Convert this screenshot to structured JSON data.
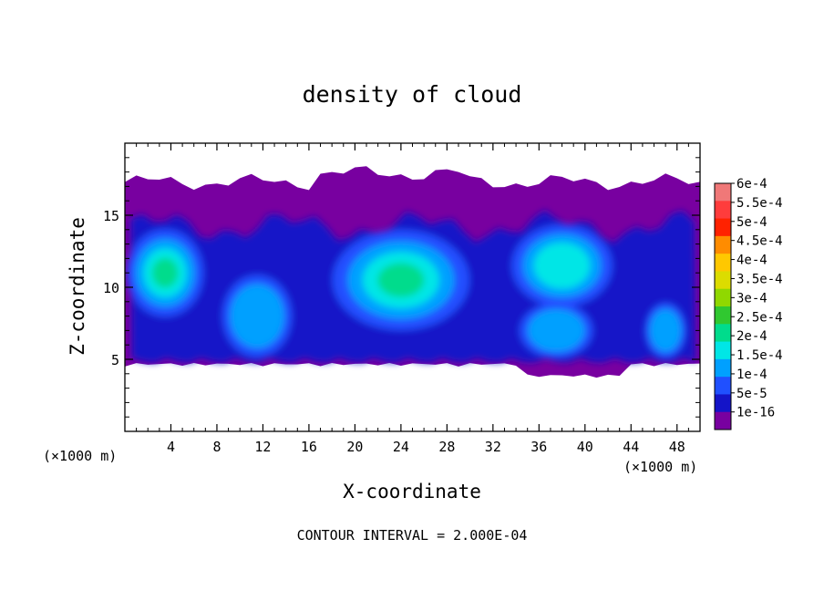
{
  "chart_data": {
    "type": "heatmap",
    "title": "density of cloud",
    "xlabel": "X-coordinate",
    "ylabel": "Z-coordinate",
    "x_unit": "(×1000 m)",
    "y_unit": "(×1000 m)",
    "xlim": [
      0,
      50
    ],
    "ylim": [
      0,
      20
    ],
    "x_ticks": [
      4,
      8,
      12,
      16,
      20,
      24,
      28,
      32,
      36,
      40,
      44,
      48
    ],
    "y_ticks": [
      5,
      10,
      15
    ],
    "footer": "CONTOUR INTERVAL = 2.000E-04",
    "colorbar": {
      "labels": [
        "6e-4",
        "5.5e-4",
        "5e-4",
        "4.5e-4",
        "4e-4",
        "3.5e-4",
        "3e-4",
        "2.5e-4",
        "2e-4",
        "1.5e-4",
        "1e-4",
        "5e-5",
        "1e-16"
      ],
      "colors": [
        "#f07878",
        "#ff3c3c",
        "#ff2200",
        "#ff8c00",
        "#ffc800",
        "#dcdc00",
        "#90d800",
        "#30c830",
        "#00dc8c",
        "#00e6e6",
        "#00a0ff",
        "#2050ff",
        "#1414c8",
        "#7800a0"
      ]
    },
    "cloud_field": {
      "cloud_base_km": 4.5,
      "cloud_top_km": 17.3,
      "peak_value": 0.0002,
      "cores": [
        {
          "x": 3.5,
          "z": 11.0,
          "value": 0.0002
        },
        {
          "x": 11.5,
          "z": 8.0,
          "value": 0.00012
        },
        {
          "x": 24.0,
          "z": 10.5,
          "value": 0.0002
        },
        {
          "x": 38.0,
          "z": 11.5,
          "value": 0.00013
        },
        {
          "x": 37.5,
          "z": 7.0,
          "value": 0.00011
        },
        {
          "x": 47.0,
          "z": 7.0,
          "value": 0.0001
        }
      ]
    }
  }
}
